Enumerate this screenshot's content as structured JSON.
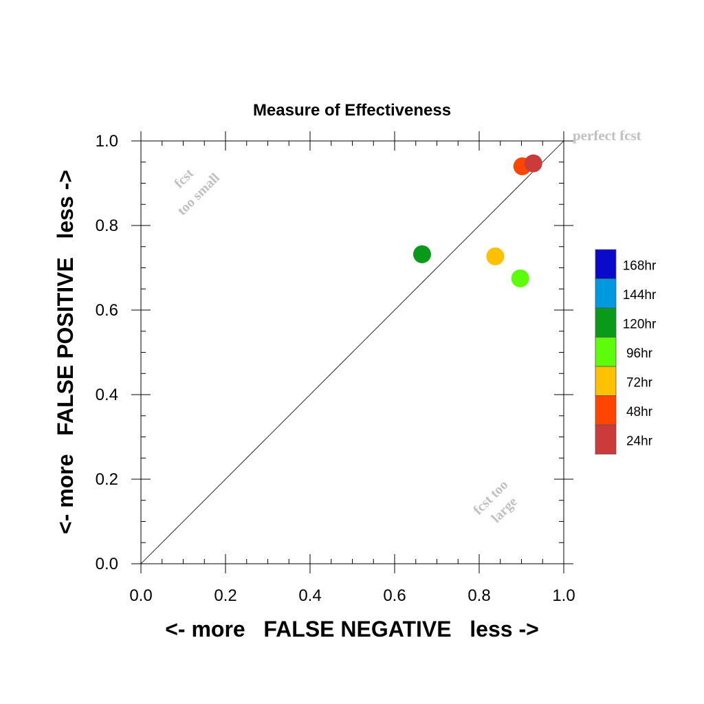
{
  "chart_data": {
    "type": "scatter",
    "title": "Measure of Effectiveness",
    "xlabel": "<- more   FALSE NEGATIVE   less ->",
    "ylabel": "<- more   FALSE POSITIVE   less ->",
    "xlim": [
      0.0,
      1.0
    ],
    "ylim": [
      0.0,
      1.0
    ],
    "x_ticks": [
      "0.0",
      "0.2",
      "0.4",
      "0.6",
      "0.8",
      "1.0"
    ],
    "y_ticks": [
      "0.0",
      "0.2",
      "0.4",
      "0.6",
      "0.8",
      "1.0"
    ],
    "grid": false,
    "diagonal_reference_line": true,
    "legend_position": "right",
    "annotations": {
      "perfect": "perfect fcst",
      "small_line1": "fcst",
      "small_line2": "too small",
      "large_line1": "fcst too",
      "large_line2": "large"
    },
    "legend": [
      {
        "label": "168hr",
        "color": "#0a0acb"
      },
      {
        "label": "144hr",
        "color": "#0099dd"
      },
      {
        "label": "120hr",
        "color": "#0a9a1a"
      },
      {
        "label": "96hr",
        "color": "#5cfc0b"
      },
      {
        "label": "72hr",
        "color": "#ffc000"
      },
      {
        "label": "48hr",
        "color": "#ff4500"
      },
      {
        "label": "24hr",
        "color": "#cc3b3b"
      }
    ],
    "points": [
      {
        "series": "120hr",
        "x": 0.665,
        "y": 0.732,
        "color": "#0a9a1a"
      },
      {
        "series": "72hr",
        "x": 0.838,
        "y": 0.727,
        "color": "#ffc000"
      },
      {
        "series": "96hr",
        "x": 0.897,
        "y": 0.675,
        "color": "#5cfc0b"
      },
      {
        "series": "48hr",
        "x": 0.902,
        "y": 0.94,
        "color": "#ff4500"
      },
      {
        "series": "24hr",
        "x": 0.928,
        "y": 0.947,
        "color": "#cc3b3b"
      }
    ]
  }
}
